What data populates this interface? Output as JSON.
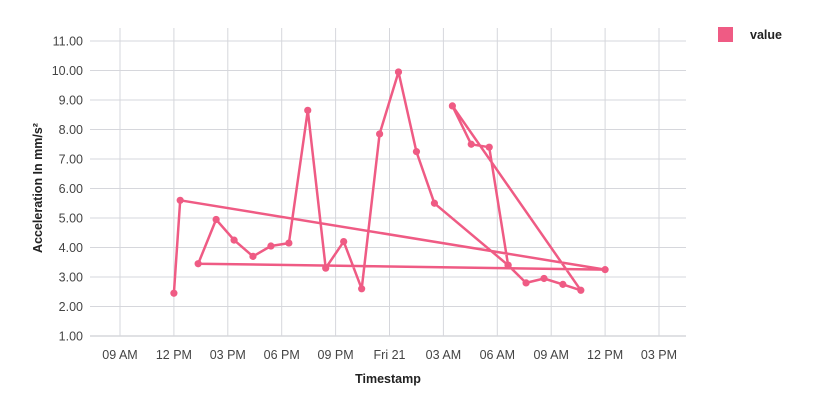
{
  "chart_data": {
    "type": "line",
    "title": "",
    "xlabel": "Timestamp",
    "ylabel": "Acceleration In mm/s²",
    "ylim": [
      1,
      11
    ],
    "yticks": [
      "1.00",
      "2.00",
      "3.00",
      "4.00",
      "5.00",
      "6.00",
      "7.00",
      "8.00",
      "9.00",
      "10.00",
      "11.00"
    ],
    "xticks": [
      "09 AM",
      "12 PM",
      "03 PM",
      "06 PM",
      "09 PM",
      "Fri 21",
      "03 AM",
      "06 AM",
      "09 AM",
      "12 PM",
      "03 PM"
    ],
    "xlim_hours": [
      6,
      39
    ],
    "grid": true,
    "legend_position": "top-right",
    "series": [
      {
        "name": "value",
        "color": "#ef5b84",
        "points_in_draw_order": [
          {
            "t_hours": 12.0,
            "y": 2.45
          },
          {
            "t_hours": 12.35,
            "y": 5.6
          },
          {
            "t_hours": 36.0,
            "y": 3.25
          },
          {
            "t_hours": 13.35,
            "y": 3.45
          },
          {
            "t_hours": 14.35,
            "y": 4.95
          },
          {
            "t_hours": 15.35,
            "y": 4.25
          },
          {
            "t_hours": 16.4,
            "y": 3.7
          },
          {
            "t_hours": 17.4,
            "y": 4.05
          },
          {
            "t_hours": 18.4,
            "y": 4.15
          },
          {
            "t_hours": 19.45,
            "y": 8.65
          },
          {
            "t_hours": 20.45,
            "y": 3.3
          },
          {
            "t_hours": 21.45,
            "y": 4.2
          },
          {
            "t_hours": 22.45,
            "y": 2.6
          },
          {
            "t_hours": 23.45,
            "y": 7.85
          },
          {
            "t_hours": 24.5,
            "y": 9.95
          },
          {
            "t_hours": 25.5,
            "y": 7.25
          },
          {
            "t_hours": 26.5,
            "y": 5.5
          },
          {
            "t_hours": 30.6,
            "y": 3.4
          },
          {
            "t_hours": 31.6,
            "y": 2.8
          },
          {
            "t_hours": 32.6,
            "y": 2.95
          },
          {
            "t_hours": 33.65,
            "y": 2.75
          },
          {
            "t_hours": 34.65,
            "y": 2.55
          },
          {
            "t_hours": 27.5,
            "y": 8.8
          },
          {
            "t_hours": 28.55,
            "y": 7.5
          },
          {
            "t_hours": 29.55,
            "y": 7.4
          },
          {
            "t_hours": 30.6,
            "y": 3.4
          }
        ]
      }
    ]
  },
  "legend": {
    "items": [
      {
        "label": "value",
        "color": "#ef5b84"
      }
    ]
  },
  "style": {
    "grid_color": "#d6d7dc",
    "line_color": "#ef5b84"
  }
}
